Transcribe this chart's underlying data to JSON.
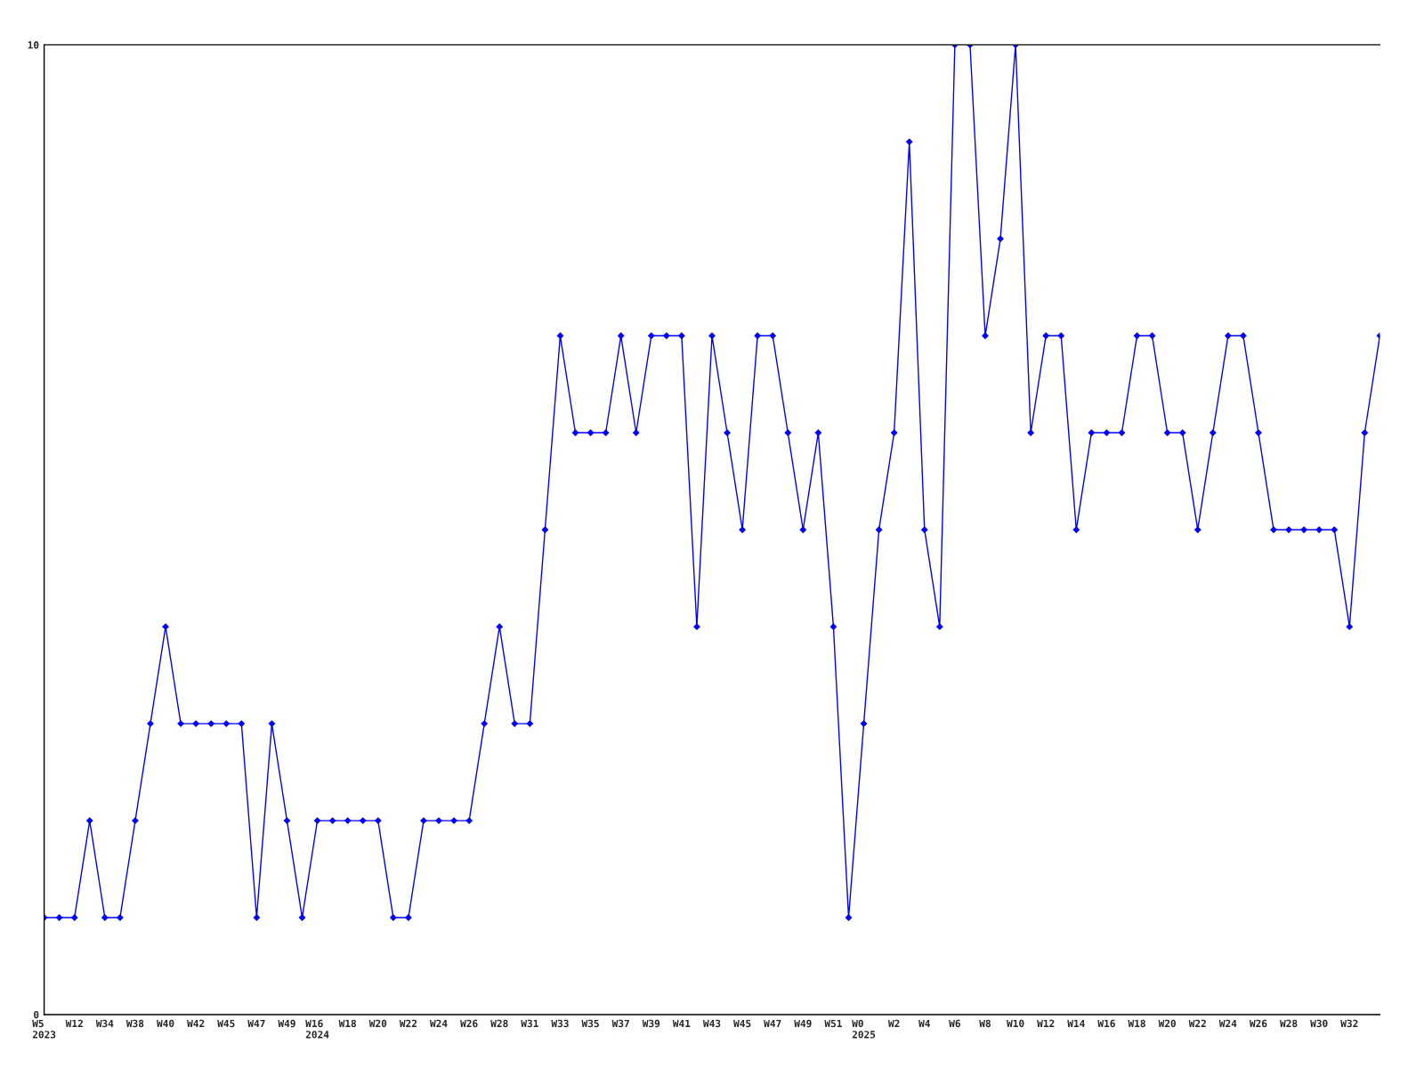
{
  "chart_data": {
    "type": "line",
    "categories": [
      "W5\n2023",
      null,
      "W12",
      null,
      "W34",
      null,
      "W38",
      null,
      "W40",
      null,
      "W42",
      null,
      "W45",
      null,
      "W47",
      null,
      "W49",
      null,
      "W16\n2024",
      null,
      "W18",
      null,
      "W20",
      null,
      "W22",
      null,
      "W24",
      null,
      "W26",
      null,
      "W28",
      null,
      "W31",
      null,
      "W33",
      null,
      "W35",
      null,
      "W37",
      null,
      "W39",
      null,
      "W41",
      null,
      "W43",
      null,
      "W45",
      null,
      "W47",
      null,
      "W49",
      null,
      "W51",
      null,
      "W0\n2025",
      null,
      "W2",
      null,
      "W4",
      null,
      "W6",
      null,
      "W8",
      null,
      "W10",
      null,
      "W12",
      null,
      "W14",
      null,
      "W16",
      null,
      "W18",
      null,
      "W20",
      null,
      "W22",
      null,
      "W24",
      null,
      "W26",
      null,
      "W28",
      null,
      "W30",
      null,
      "W32",
      null,
      null
    ],
    "values": [
      1,
      1,
      1,
      2,
      1,
      1,
      2,
      3,
      4,
      3,
      3,
      3,
      3,
      3,
      1,
      3,
      2,
      1,
      2,
      2,
      2,
      2,
      2,
      1,
      1,
      2,
      2,
      2,
      2,
      3,
      4,
      3,
      3,
      5,
      7,
      6,
      6,
      6,
      7,
      6,
      7,
      7,
      7,
      4,
      7,
      6,
      5,
      7,
      7,
      6,
      5,
      6,
      4,
      1,
      3,
      5,
      6,
      9,
      5,
      4,
      10,
      10,
      7,
      8,
      10,
      6,
      7,
      7,
      5,
      6,
      6,
      6,
      7,
      7,
      6,
      6,
      5,
      6,
      7,
      7,
      6,
      5,
      5,
      5,
      5,
      5,
      4,
      6,
      7
    ],
    "color": "#0000ff",
    "ylim": [
      0,
      10
    ],
    "yticks": [
      0,
      10
    ],
    "marker": "diamond",
    "line_style": "solid"
  }
}
